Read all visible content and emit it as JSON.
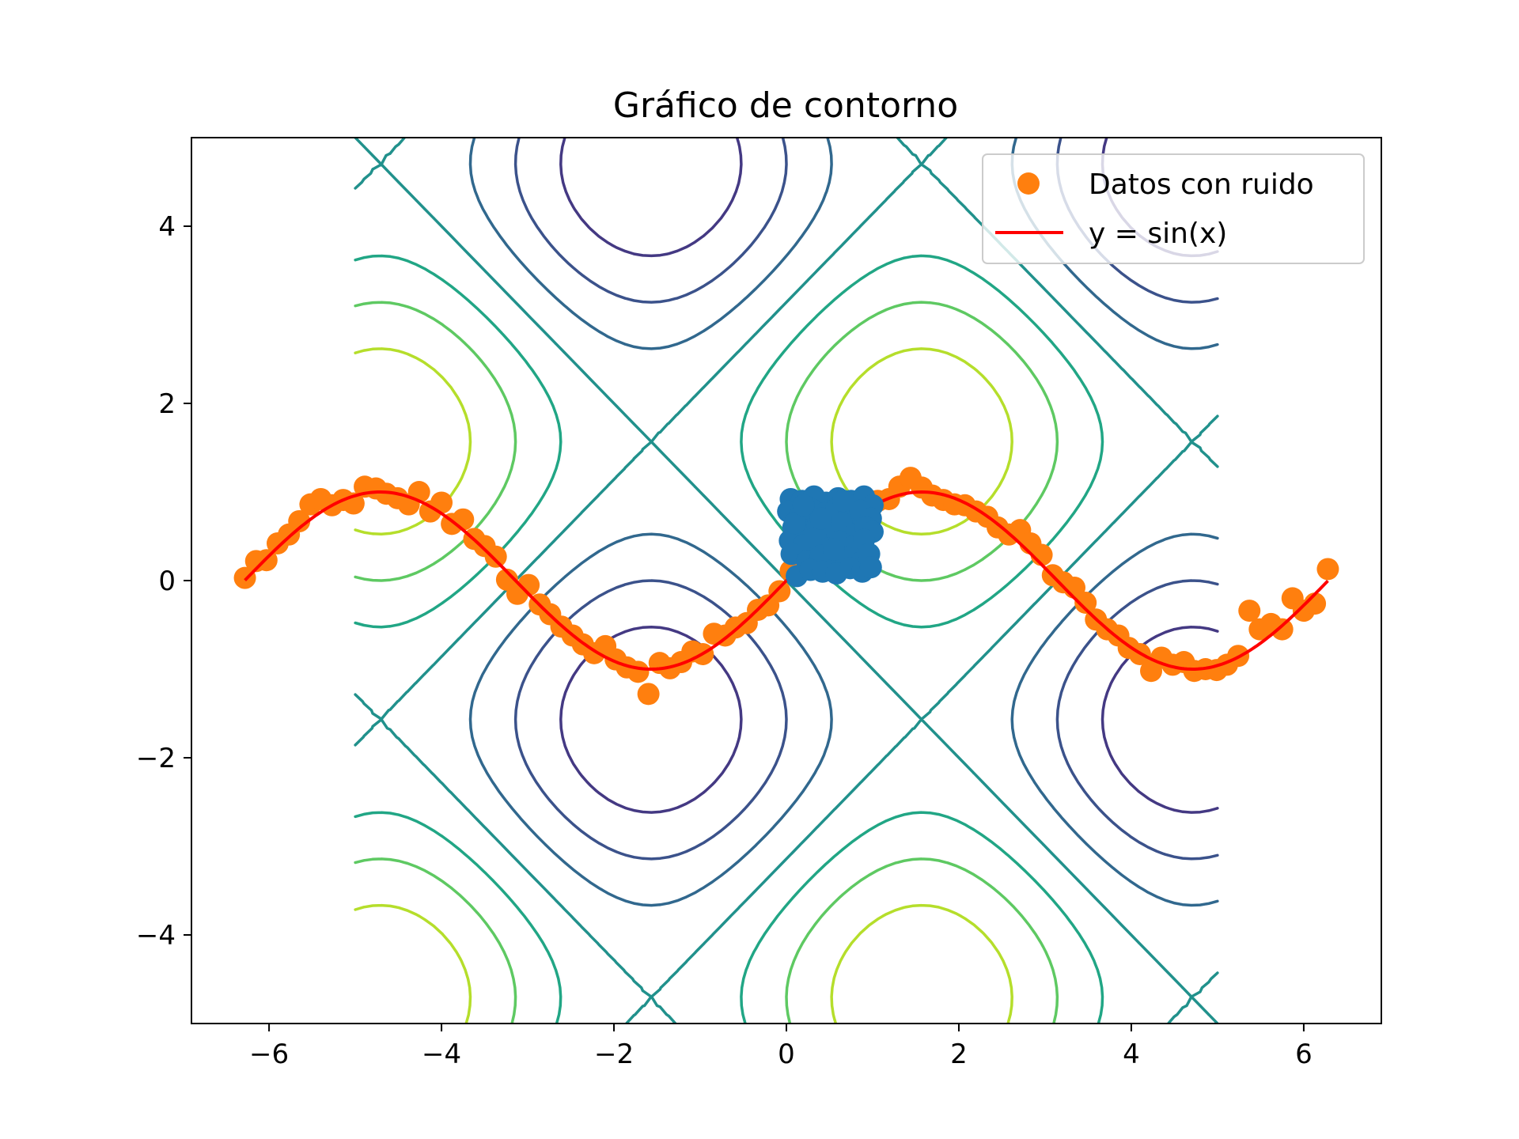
{
  "chart_data": {
    "type": "contour",
    "title": "Gráfico de contorno",
    "xlabel": "",
    "ylabel": "",
    "xlim": [
      -6.9,
      6.9
    ],
    "ylim": [
      -5,
      5
    ],
    "x_ticks": [
      {
        "value": -6,
        "label": "−6"
      },
      {
        "value": -4,
        "label": "−4"
      },
      {
        "value": -2,
        "label": "−2"
      },
      {
        "value": 0,
        "label": "0"
      },
      {
        "value": 2,
        "label": "2"
      },
      {
        "value": 4,
        "label": "4"
      },
      {
        "value": 6,
        "label": "6"
      }
    ],
    "y_ticks": [
      {
        "value": -4,
        "label": "−4"
      },
      {
        "value": -2,
        "label": "−2"
      },
      {
        "value": 0,
        "label": "0"
      },
      {
        "value": 2,
        "label": "2"
      },
      {
        "value": 4,
        "label": "4"
      }
    ],
    "grid": false,
    "legend_position": "top-right",
    "contour": {
      "function": "sin(x) + sin(y)",
      "x_range": [
        -5,
        5
      ],
      "y_range": [
        -5,
        5
      ],
      "levels": [
        -1.5,
        -1.0,
        -0.5,
        0.0,
        0.5,
        1.0,
        1.5
      ],
      "colors": [
        "#443983",
        "#3b528b",
        "#31688e",
        "#21918c",
        "#21a685",
        "#5ec962",
        "#b5de2b"
      ]
    },
    "series": [
      {
        "name": "Datos con ruido",
        "type": "scatter",
        "color": "#ff7f0e",
        "points": [
          [
            -6.28,
            0.03
          ],
          [
            -6.15,
            0.22
          ],
          [
            -6.03,
            0.23
          ],
          [
            -5.9,
            0.42
          ],
          [
            -5.77,
            0.52
          ],
          [
            -5.65,
            0.67
          ],
          [
            -5.52,
            0.86
          ],
          [
            -5.4,
            0.92
          ],
          [
            -5.27,
            0.85
          ],
          [
            -5.14,
            0.91
          ],
          [
            -5.02,
            0.87
          ],
          [
            -4.89,
            1.06
          ],
          [
            -4.76,
            1.04
          ],
          [
            -4.64,
            0.98
          ],
          [
            -4.51,
            0.93
          ],
          [
            -4.38,
            0.86
          ],
          [
            -4.26,
            1.0
          ],
          [
            -4.13,
            0.78
          ],
          [
            -4.0,
            0.88
          ],
          [
            -3.88,
            0.64
          ],
          [
            -3.75,
            0.69
          ],
          [
            -3.62,
            0.47
          ],
          [
            -3.5,
            0.39
          ],
          [
            -3.37,
            0.27
          ],
          [
            -3.24,
            0.01
          ],
          [
            -3.12,
            -0.15
          ],
          [
            -2.99,
            -0.05
          ],
          [
            -2.86,
            -0.27
          ],
          [
            -2.74,
            -0.38
          ],
          [
            -2.61,
            -0.52
          ],
          [
            -2.48,
            -0.62
          ],
          [
            -2.36,
            -0.72
          ],
          [
            -2.23,
            -0.82
          ],
          [
            -2.1,
            -0.74
          ],
          [
            -1.98,
            -0.89
          ],
          [
            -1.85,
            -0.98
          ],
          [
            -1.72,
            -1.03
          ],
          [
            -1.6,
            -1.28
          ],
          [
            -1.47,
            -0.93
          ],
          [
            -1.35,
            -0.99
          ],
          [
            -1.22,
            -0.92
          ],
          [
            -1.09,
            -0.8
          ],
          [
            -0.97,
            -0.83
          ],
          [
            -0.84,
            -0.6
          ],
          [
            -0.71,
            -0.62
          ],
          [
            -0.59,
            -0.53
          ],
          [
            -0.46,
            -0.48
          ],
          [
            -0.33,
            -0.33
          ],
          [
            -0.21,
            -0.28
          ],
          [
            -0.08,
            -0.12
          ],
          [
            0.05,
            0.11
          ],
          [
            0.17,
            0.27
          ],
          [
            0.3,
            0.33
          ],
          [
            0.43,
            0.45
          ],
          [
            0.55,
            0.55
          ],
          [
            0.68,
            0.6
          ],
          [
            0.81,
            0.61
          ],
          [
            0.93,
            0.87
          ],
          [
            1.06,
            0.9
          ],
          [
            1.19,
            0.92
          ],
          [
            1.31,
            1.06
          ],
          [
            1.44,
            1.16
          ],
          [
            1.57,
            1.05
          ],
          [
            1.69,
            0.96
          ],
          [
            1.82,
            0.91
          ],
          [
            1.95,
            0.86
          ],
          [
            2.07,
            0.85
          ],
          [
            2.2,
            0.78
          ],
          [
            2.33,
            0.72
          ],
          [
            2.45,
            0.6
          ],
          [
            2.58,
            0.52
          ],
          [
            2.71,
            0.57
          ],
          [
            2.83,
            0.42
          ],
          [
            2.96,
            0.29
          ],
          [
            3.09,
            0.06
          ],
          [
            3.21,
            -0.02
          ],
          [
            3.34,
            -0.08
          ],
          [
            3.47,
            -0.25
          ],
          [
            3.59,
            -0.44
          ],
          [
            3.72,
            -0.55
          ],
          [
            3.85,
            -0.62
          ],
          [
            3.97,
            -0.76
          ],
          [
            4.1,
            -0.83
          ],
          [
            4.23,
            -1.02
          ],
          [
            4.35,
            -0.87
          ],
          [
            4.48,
            -0.95
          ],
          [
            4.61,
            -0.92
          ],
          [
            4.73,
            -1.02
          ],
          [
            4.86,
            -1.0
          ],
          [
            4.99,
            -1.01
          ],
          [
            5.11,
            -0.95
          ],
          [
            5.24,
            -0.85
          ],
          [
            5.37,
            -0.34
          ],
          [
            5.49,
            -0.55
          ],
          [
            5.62,
            -0.49
          ],
          [
            5.75,
            -0.55
          ],
          [
            5.87,
            -0.2
          ],
          [
            6.0,
            -0.34
          ],
          [
            6.13,
            -0.26
          ],
          [
            6.28,
            0.13
          ]
        ]
      },
      {
        "name": "y = sin(x)",
        "type": "line",
        "color": "#ff0000",
        "function": "sin(x)",
        "x_range": [
          -6.28,
          6.28
        ]
      },
      {
        "name": "",
        "type": "scatter",
        "color": "#1f77b4",
        "points": [
          [
            0.05,
            0.92
          ],
          [
            0.18,
            0.9
          ],
          [
            0.32,
            0.95
          ],
          [
            0.46,
            0.88
          ],
          [
            0.6,
            0.93
          ],
          [
            0.75,
            0.9
          ],
          [
            0.9,
            0.95
          ],
          [
            1.0,
            0.85
          ],
          [
            0.02,
            0.78
          ],
          [
            0.15,
            0.72
          ],
          [
            0.3,
            0.8
          ],
          [
            0.44,
            0.76
          ],
          [
            0.58,
            0.81
          ],
          [
            0.72,
            0.74
          ],
          [
            0.86,
            0.79
          ],
          [
            0.98,
            0.7
          ],
          [
            0.08,
            0.6
          ],
          [
            0.22,
            0.55
          ],
          [
            0.36,
            0.62
          ],
          [
            0.5,
            0.58
          ],
          [
            0.64,
            0.65
          ],
          [
            0.78,
            0.52
          ],
          [
            0.92,
            0.6
          ],
          [
            1.0,
            0.55
          ],
          [
            0.04,
            0.45
          ],
          [
            0.2,
            0.4
          ],
          [
            0.34,
            0.48
          ],
          [
            0.48,
            0.36
          ],
          [
            0.62,
            0.44
          ],
          [
            0.76,
            0.38
          ],
          [
            0.9,
            0.46
          ],
          [
            0.06,
            0.3
          ],
          [
            0.24,
            0.22
          ],
          [
            0.4,
            0.28
          ],
          [
            0.56,
            0.18
          ],
          [
            0.7,
            0.26
          ],
          [
            0.85,
            0.2
          ],
          [
            0.96,
            0.3
          ],
          [
            0.12,
            0.05
          ],
          [
            0.28,
            0.12
          ],
          [
            0.42,
            0.1
          ],
          [
            0.58,
            0.08
          ],
          [
            0.74,
            0.14
          ],
          [
            0.88,
            0.1
          ],
          [
            0.98,
            0.15
          ],
          [
            0.1,
            0.65
          ],
          [
            0.4,
            0.7
          ],
          [
            0.66,
            0.9
          ],
          [
            0.2,
            0.85
          ],
          [
            0.55,
            0.35
          ]
        ]
      }
    ],
    "legend": [
      {
        "label": "Datos con ruido",
        "kind": "scatter",
        "color": "#ff7f0e"
      },
      {
        "label": "y = sin(x)",
        "kind": "line",
        "color": "#ff0000"
      }
    ]
  }
}
